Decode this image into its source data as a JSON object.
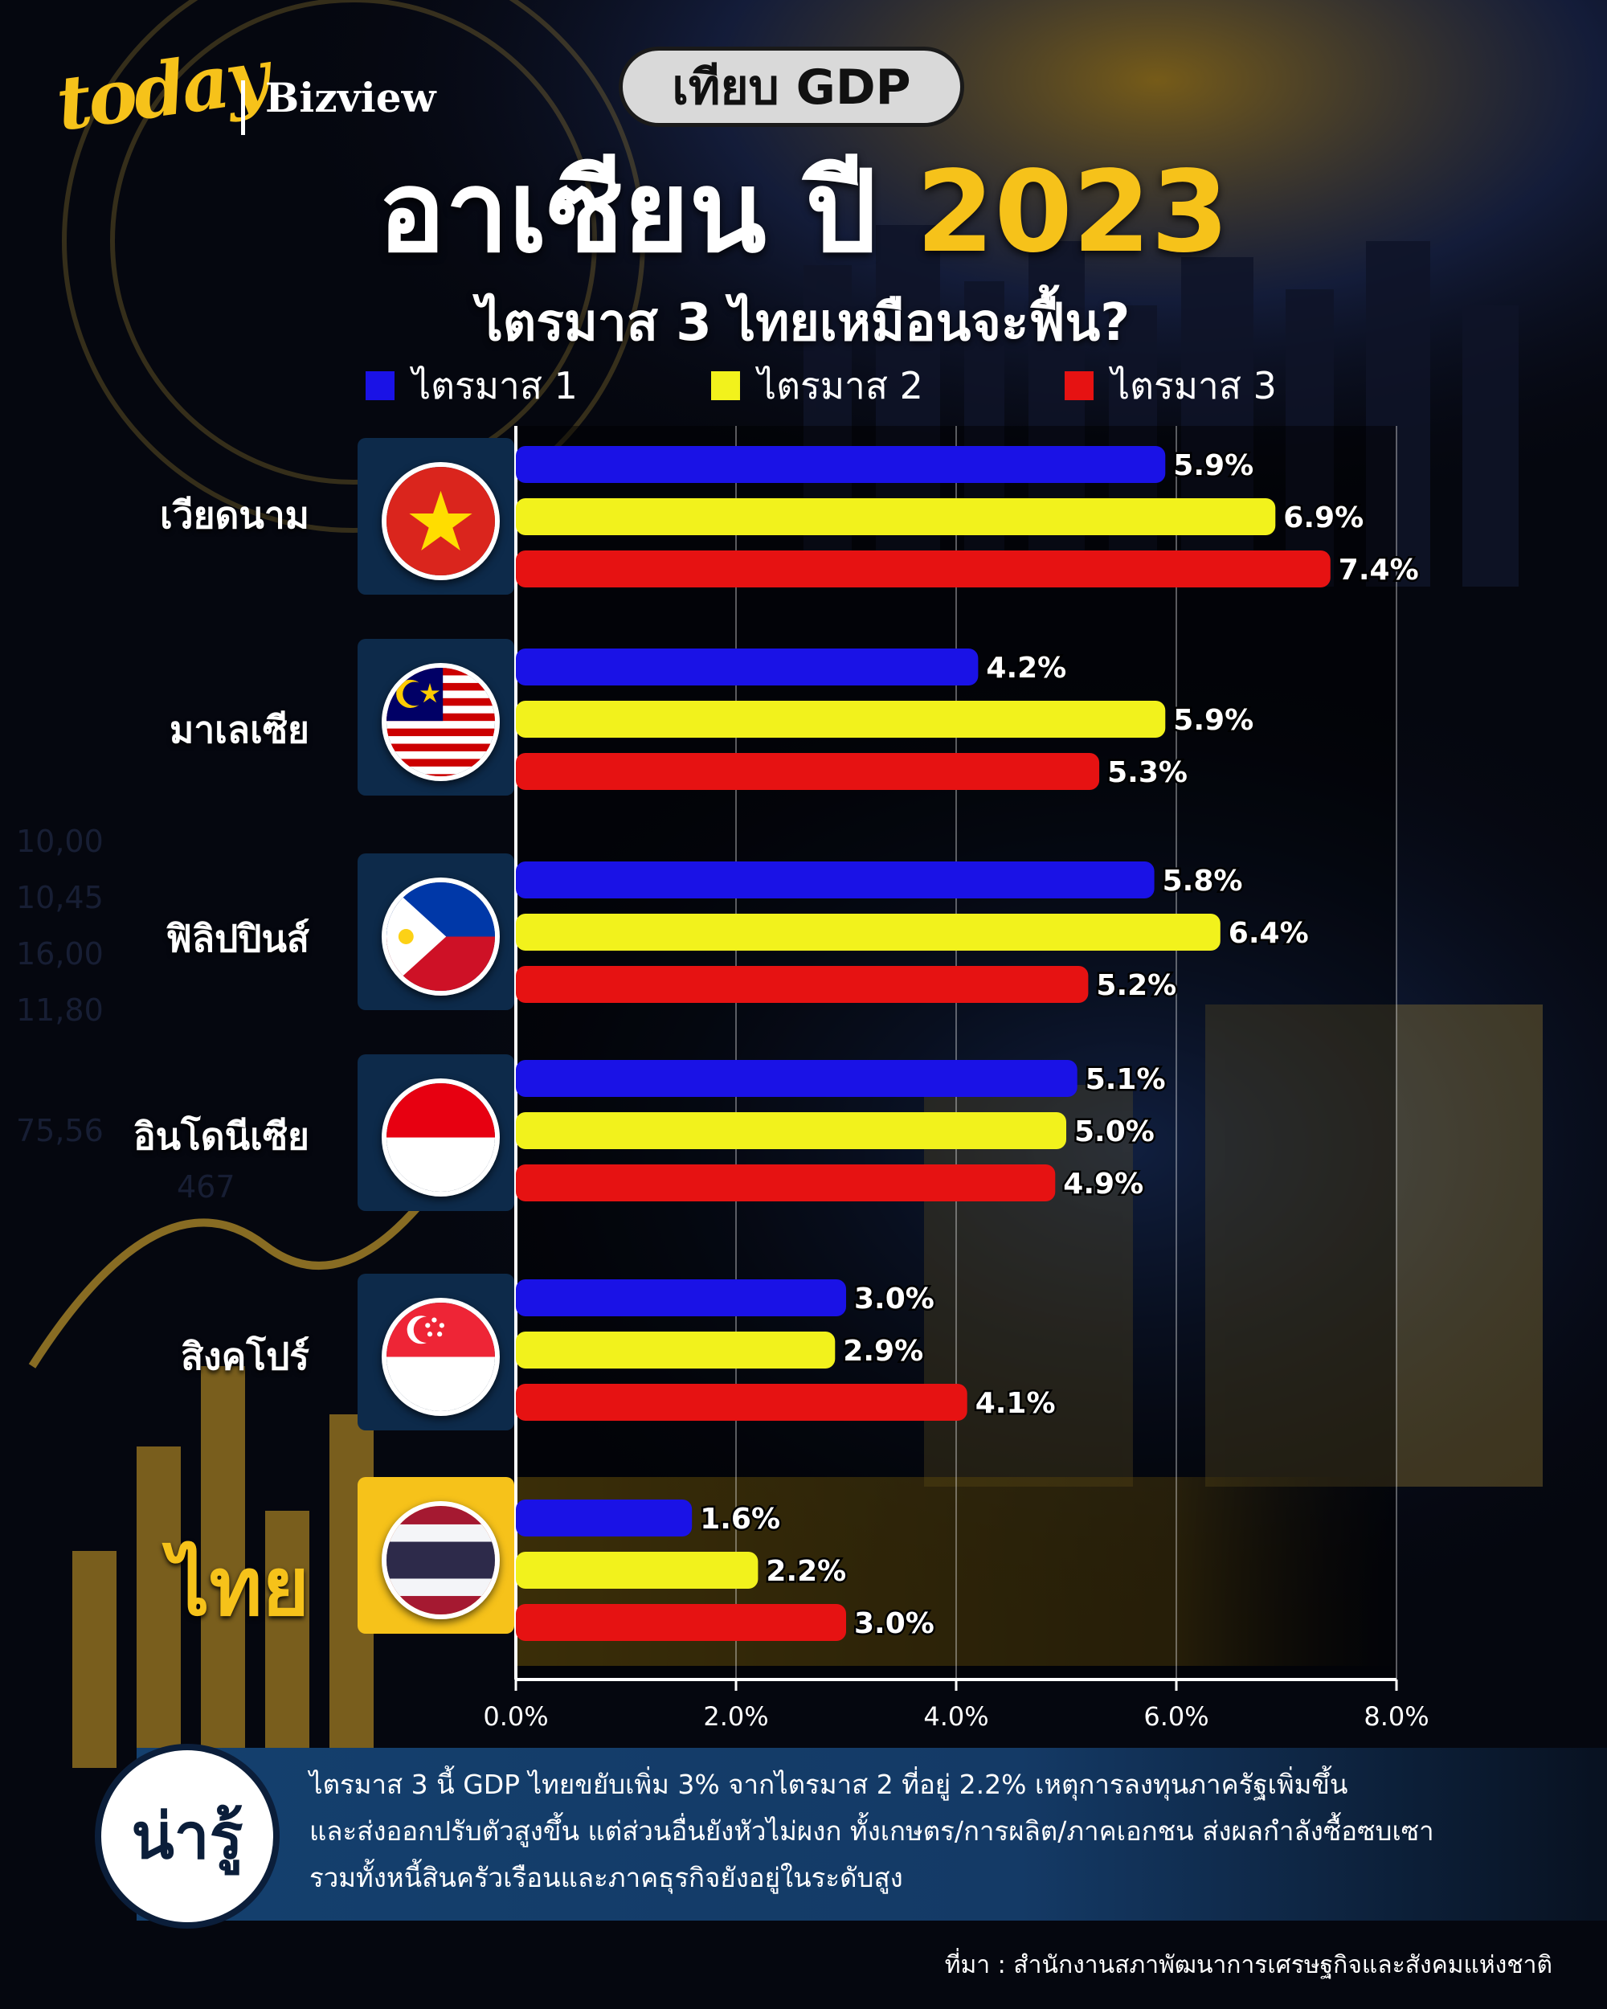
{
  "brand": {
    "logo": "today",
    "name": "Bizview"
  },
  "header": {
    "pill": "เทียบ GDP",
    "title_main": "อาเซียน ปี",
    "title_year": "2023",
    "subtitle": "ไตรมาส 3 ไทยเหมือนจะฟื้น?"
  },
  "colors": {
    "q1": "#1a12e6",
    "q2": "#f2f21c",
    "q3": "#e61212",
    "accent": "#f6c21a",
    "panel": "#0d2a4a"
  },
  "chart_data": {
    "type": "bar",
    "orientation": "horizontal",
    "categories": [
      "เวียดนาม",
      "มาเลเซีย",
      "ฟิลิปปินส์",
      "อินโดนีเซีย",
      "สิงคโปร์",
      "ไทย"
    ],
    "series": [
      {
        "name": "ไตรมาส 1",
        "values": [
          5.9,
          4.2,
          5.8,
          5.1,
          3.0,
          1.6
        ],
        "labels": [
          "5.9%",
          "4.2%",
          "5.8%",
          "5.1%",
          "3.0%",
          "1.6%"
        ]
      },
      {
        "name": "ไตรมาส 2",
        "values": [
          6.9,
          5.9,
          6.4,
          5.0,
          2.9,
          2.2
        ],
        "labels": [
          "6.9%",
          "5.9%",
          "6.4%",
          "5.0%",
          "2.9%",
          "2.2%"
        ]
      },
      {
        "name": "ไตรมาส 3",
        "values": [
          7.4,
          5.3,
          5.2,
          4.9,
          4.1,
          3.0
        ],
        "labels": [
          "7.4%",
          "5.3%",
          "5.2%",
          "4.9%",
          "4.1%",
          "3.0%"
        ]
      }
    ],
    "xlim": [
      0,
      8
    ],
    "xticks": [
      "0.0%",
      "2.0%",
      "4.0%",
      "6.0%",
      "8.0%"
    ],
    "grid": true,
    "legend_position": "top"
  },
  "flags": [
    "vietnam-flag-icon",
    "malaysia-flag-icon",
    "philippines-flag-icon",
    "indonesia-flag-icon",
    "singapore-flag-icon",
    "thailand-flag-icon"
  ],
  "note": {
    "badge": "น่ารู้",
    "lines": [
      "ไตรมาส 3 นี้ GDP ไทยขยับเพิ่ม 3% จากไตรมาส 2 ที่อยู่ 2.2% เหตุการลงทุนภาครัฐเพิ่มขึ้น",
      "และส่งออกปรับตัวสูงขึ้น แต่ส่วนอื่นยังหัวไม่ผงก ทั้งเกษตร/การผลิต/ภาคเอกชน ส่งผลกำลังซื้อซบเซา",
      "รวมทั้งหนี้สินครัวเรือนและภาคธุรกิจยังอยู่ในระดับสูง"
    ]
  },
  "source": "ที่มา : สำนักงานสภาพัฒนาการเศรษฐกิจและสังคมแห่งชาติ"
}
